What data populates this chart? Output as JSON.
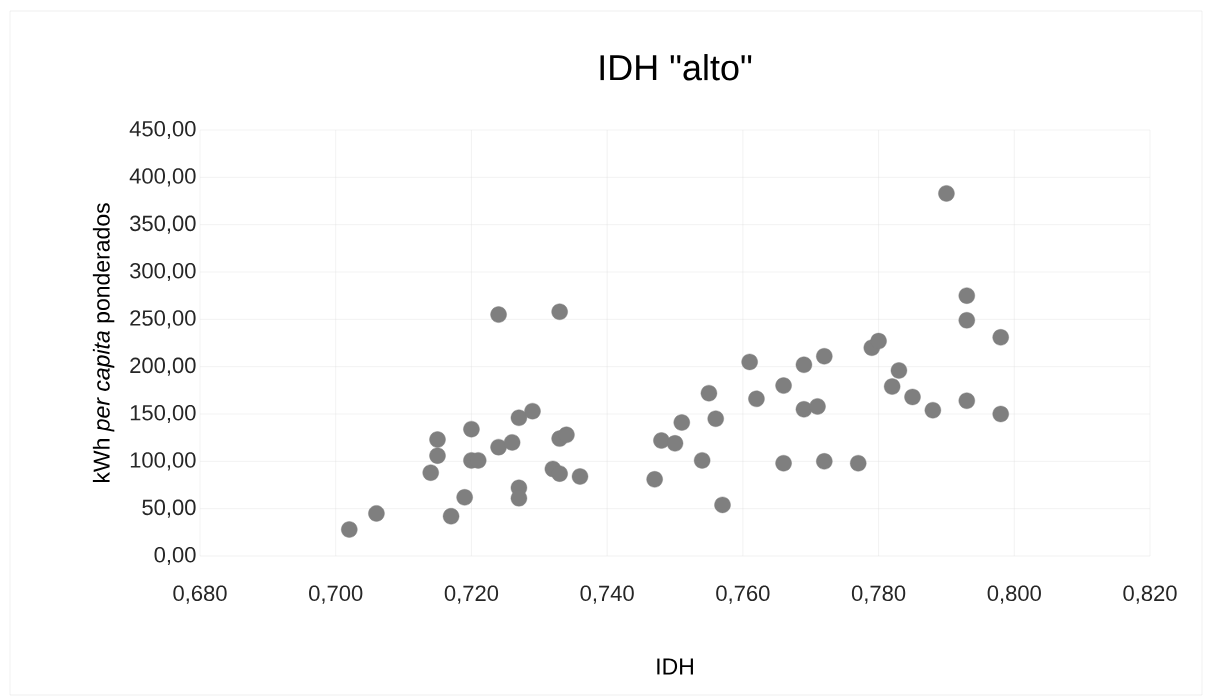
{
  "chart_data": {
    "type": "scatter",
    "title": "IDH \"alto\"",
    "xlabel": "IDH",
    "ylabel": "kWh *per capita* ponderados",
    "x": [
      0.702,
      0.706,
      0.714,
      0.715,
      0.715,
      0.717,
      0.719,
      0.72,
      0.72,
      0.721,
      0.724,
      0.724,
      0.726,
      0.727,
      0.727,
      0.727,
      0.729,
      0.732,
      0.733,
      0.733,
      0.733,
      0.734,
      0.736,
      0.747,
      0.748,
      0.75,
      0.751,
      0.754,
      0.755,
      0.756,
      0.757,
      0.761,
      0.762,
      0.766,
      0.766,
      0.769,
      0.769,
      0.771,
      0.772,
      0.772,
      0.777,
      0.779,
      0.78,
      0.782,
      0.783,
      0.785,
      0.788,
      0.79,
      0.793,
      0.793,
      0.793,
      0.798,
      0.798
    ],
    "values": [
      28,
      45,
      88,
      123,
      106,
      42,
      62,
      134,
      101,
      101,
      255,
      115,
      120,
      146,
      72,
      61,
      153,
      92,
      258,
      124,
      87,
      128,
      84,
      81,
      122,
      119,
      141,
      101,
      172,
      145,
      54,
      205,
      166,
      180,
      98,
      202,
      155,
      158,
      211,
      100,
      98,
      220,
      227,
      179,
      196,
      168,
      154,
      383,
      275,
      249,
      164,
      231,
      150
    ],
    "color": "#7f7f7f",
    "xlim": [
      0.68,
      0.82
    ],
    "xticks": [
      {
        "value": 0.68,
        "label": "0,680"
      },
      {
        "value": 0.7,
        "label": "0,700"
      },
      {
        "value": 0.72,
        "label": "0,720"
      },
      {
        "value": 0.74,
        "label": "0,740"
      },
      {
        "value": 0.76,
        "label": "0,760"
      },
      {
        "value": 0.78,
        "label": "0,780"
      },
      {
        "value": 0.8,
        "label": "0,800"
      },
      {
        "value": 0.82,
        "label": "0,820"
      }
    ],
    "ylim": [
      0,
      450
    ],
    "yticks": [
      {
        "value": 0,
        "label": "0,00"
      },
      {
        "value": 50,
        "label": "50,00"
      },
      {
        "value": 100,
        "label": "100,00"
      },
      {
        "value": 150,
        "label": "150,00"
      },
      {
        "value": 200,
        "label": "200,00"
      },
      {
        "value": 250,
        "label": "250,00"
      },
      {
        "value": 300,
        "label": "300,00"
      },
      {
        "value": 350,
        "label": "350,00"
      },
      {
        "value": 400,
        "label": "400,00"
      },
      {
        "value": 450,
        "label": "450,00"
      }
    ],
    "grid": true
  }
}
